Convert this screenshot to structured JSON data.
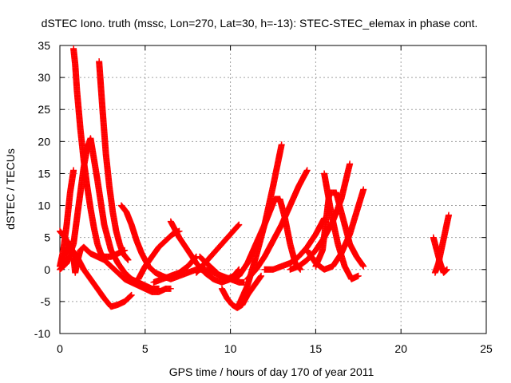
{
  "chart_data": {
    "type": "scatter",
    "title": "dSTEC Iono. truth (mssc, Lon=270, Lat=30, h=-13): STEC-STEC_elemax in phase cont.",
    "xlabel": "GPS time / hours of day 170 of year 2011",
    "ylabel": "dSTEC  / TECUs",
    "xlim": [
      0,
      25
    ],
    "ylim": [
      -10,
      35
    ],
    "x_ticks": [
      0,
      5,
      10,
      15,
      20,
      25
    ],
    "y_ticks": [
      -10,
      -5,
      0,
      5,
      10,
      15,
      20,
      25,
      30,
      35
    ],
    "grid": true,
    "marker": "plus",
    "series_color": "#ff0000",
    "series": [
      {
        "x": [
          0.0,
          0.2,
          0.4,
          0.6,
          0.8
        ],
        "y": [
          0.5,
          3.0,
          7.0,
          12.0,
          15.5
        ]
      },
      {
        "x": [
          0.0,
          0.3,
          0.6,
          0.8,
          0.9,
          1.0,
          1.2,
          1.4,
          1.8,
          2.2,
          2.6,
          3.0,
          3.4,
          3.8,
          4.2,
          4.6,
          5.0,
          5.4,
          5.8,
          6.2,
          6.5
        ],
        "y": [
          0.5,
          2.5,
          4.0,
          2.0,
          -0.5,
          1.0,
          3.0,
          3.5,
          2.5,
          2.0,
          1.5,
          0.5,
          -0.5,
          -1.5,
          -2.0,
          -2.5,
          -3.0,
          -3.5,
          -3.5,
          -3.0,
          -3.0
        ]
      },
      {
        "x": [
          0.8,
          0.9,
          1.0,
          1.2,
          1.4,
          1.6,
          1.8,
          2.0,
          2.2,
          2.4,
          2.6,
          3.0,
          3.4,
          3.8
        ],
        "y": [
          34.5,
          32.0,
          28.0,
          22.0,
          17.0,
          13.0,
          9.5,
          6.5,
          4.0,
          2.5,
          2.0,
          2.0,
          2.5,
          3.0
        ]
      },
      {
        "x": [
          0.0,
          0.3,
          0.6,
          1.0,
          1.4,
          1.8,
          2.2,
          2.6,
          3.0,
          3.4,
          3.8,
          4.2
        ],
        "y": [
          6.0,
          5.0,
          3.5,
          2.0,
          0.0,
          -1.5,
          -3.0,
          -4.5,
          -5.8,
          -5.5,
          -5.0,
          -4.0
        ]
      },
      {
        "x": [
          0.0,
          0.4,
          0.8,
          1.0,
          1.2,
          1.4,
          1.6,
          1.8,
          2.2,
          2.6,
          3.0,
          3.4,
          3.8,
          4.2,
          4.6,
          5.0,
          5.4,
          5.8
        ],
        "y": [
          0.0,
          1.0,
          4.0,
          8.0,
          12.0,
          16.0,
          19.0,
          20.5,
          14.0,
          7.0,
          3.0,
          1.0,
          -0.5,
          -1.5,
          -2.0,
          -2.5,
          -3.0,
          -3.0
        ]
      },
      {
        "x": [
          2.3,
          2.5,
          2.7,
          2.9,
          3.1,
          3.3,
          3.5,
          3.7,
          4.0
        ],
        "y": [
          32.5,
          25.0,
          18.0,
          13.0,
          9.0,
          6.0,
          4.0,
          2.5,
          1.5
        ]
      },
      {
        "x": [
          3.6,
          3.9,
          4.2,
          4.5,
          4.8,
          5.2,
          5.6,
          6.0,
          6.5,
          7.0,
          7.5,
          8.0,
          8.5,
          9.0,
          9.5,
          10.0,
          10.5,
          10.8
        ],
        "y": [
          10.0,
          9.0,
          7.0,
          4.5,
          2.5,
          0.5,
          -0.5,
          -1.0,
          -1.5,
          -1.0,
          -0.5,
          0.0,
          0.0,
          -0.5,
          -1.0,
          -1.5,
          -2.0,
          -2.0
        ]
      },
      {
        "x": [
          4.6,
          5.0,
          5.4,
          5.8,
          6.2,
          6.6,
          7.0
        ],
        "y": [
          -1.5,
          0.5,
          2.0,
          3.5,
          4.5,
          5.5,
          6.0
        ]
      },
      {
        "x": [
          6.5,
          7.0,
          7.5,
          8.0,
          8.5,
          9.0,
          9.5,
          10.0,
          10.5
        ],
        "y": [
          7.5,
          5.0,
          3.0,
          1.0,
          -0.5,
          -1.5,
          -2.0,
          -1.5,
          -1.0
        ]
      },
      {
        "x": [
          5.5,
          6.0,
          6.5,
          7.0,
          7.5,
          8.0
        ],
        "y": [
          -2.0,
          -1.5,
          -1.0,
          -0.5,
          0.5,
          2.0
        ]
      },
      {
        "x": [
          8.2,
          8.6,
          9.0,
          9.4,
          9.8,
          10.2,
          10.5
        ],
        "y": [
          2.0,
          1.0,
          0.0,
          -1.0,
          -1.5,
          -1.0,
          0.0
        ]
      },
      {
        "x": [
          8.0,
          8.5,
          9.0,
          9.5,
          10.0,
          10.5
        ],
        "y": [
          -0.5,
          1.0,
          2.5,
          4.0,
          5.5,
          7.0
        ]
      },
      {
        "x": [
          9.5,
          9.8,
          10.1,
          10.4,
          10.7,
          11.0,
          11.4,
          11.8
        ],
        "y": [
          -3.0,
          -4.5,
          -5.5,
          -6.0,
          -5.5,
          -4.0,
          -2.5,
          -1.0
        ]
      },
      {
        "x": [
          10.5,
          11.0,
          11.5,
          12.0,
          12.5,
          13.0
        ],
        "y": [
          -5.5,
          -2.5,
          2.0,
          7.0,
          13.0,
          19.5
        ]
      },
      {
        "x": [
          10.5,
          11.0,
          11.5,
          12.0,
          12.3,
          12.6,
          12.9,
          13.2,
          13.5,
          13.8,
          14.1
        ],
        "y": [
          -1.0,
          1.0,
          4.0,
          7.0,
          9.0,
          11.0,
          11.0,
          8.0,
          4.0,
          1.0,
          0.0
        ]
      },
      {
        "x": [
          11.0,
          11.5,
          12.0,
          12.5,
          13.0,
          13.5,
          14.0,
          14.5
        ],
        "y": [
          -1.5,
          0.0,
          2.0,
          4.5,
          7.0,
          10.0,
          13.0,
          15.5
        ]
      },
      {
        "x": [
          12.0,
          12.5,
          13.0,
          13.5,
          14.0,
          14.5,
          15.0,
          15.5
        ],
        "y": [
          0.0,
          0.0,
          0.5,
          1.0,
          2.0,
          3.5,
          5.5,
          8.0
        ]
      },
      {
        "x": [
          13.5,
          14.0,
          14.5,
          15.0,
          15.5,
          16.0,
          16.5,
          17.0
        ],
        "y": [
          0.0,
          0.5,
          1.5,
          3.0,
          5.0,
          7.5,
          11.0,
          16.5
        ]
      },
      {
        "x": [
          15.0,
          15.4,
          15.8,
          16.2,
          16.6,
          17.0,
          17.4,
          17.8
        ],
        "y": [
          0.5,
          3.0,
          12.0,
          12.0,
          8.0,
          4.0,
          2.0,
          0.5
        ]
      },
      {
        "x": [
          14.5,
          15.0,
          15.5,
          16.0,
          16.5,
          17.0,
          17.4,
          17.8
        ],
        "y": [
          3.0,
          1.0,
          0.0,
          0.5,
          2.5,
          5.5,
          9.0,
          12.5
        ]
      },
      {
        "x": [
          15.5,
          15.9,
          16.3,
          16.7,
          17.1,
          17.5
        ],
        "y": [
          15.0,
          9.0,
          4.0,
          0.5,
          -1.5,
          -1.0
        ]
      },
      {
        "x": [
          21.9,
          22.1,
          22.3,
          22.5,
          22.7
        ],
        "y": [
          5.0,
          3.0,
          1.0,
          -0.5,
          0.0
        ]
      },
      {
        "x": [
          22.0,
          22.2,
          22.4,
          22.6,
          22.8
        ],
        "y": [
          -0.5,
          1.0,
          3.5,
          6.0,
          8.5
        ]
      }
    ]
  }
}
